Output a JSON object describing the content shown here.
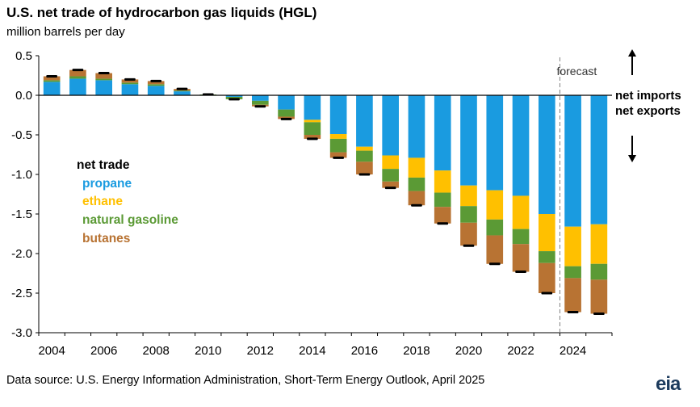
{
  "title": "U.S. net trade of hydrocarbon gas liquids (HGL)",
  "subtitle": "million  barrels per day",
  "source": "Data source: U.S. Energy Information Administration,  Short-Term Energy Outlook, April 2025",
  "logo": "eia",
  "forecast_label": "forecast",
  "net_imports_label": "net imports",
  "net_exports_label": "net exports",
  "legend": {
    "title": "net trade",
    "items": [
      {
        "label": "propane",
        "color": "#1a9be0"
      },
      {
        "label": "ethane",
        "color": "#ffc000"
      },
      {
        "label": "natural gasoline",
        "color": "#5b9a35"
      },
      {
        "label": "butanes",
        "color": "#b87333"
      }
    ]
  },
  "colors": {
    "propane": "#1a9be0",
    "ethane": "#ffc000",
    "natural_gasoline": "#5b9a35",
    "butanes": "#b87333",
    "total_marker": "#000000",
    "forecast_line": "#808080"
  },
  "chart_data": {
    "type": "bar",
    "stacked": true,
    "x": [
      2004,
      2005,
      2006,
      2007,
      2008,
      2009,
      2010,
      2011,
      2012,
      2013,
      2014,
      2015,
      2016,
      2017,
      2018,
      2019,
      2020,
      2021,
      2022,
      2023,
      2024,
      2025
    ],
    "series": [
      {
        "name": "propane",
        "values": [
          0.17,
          0.21,
          0.19,
          0.14,
          0.12,
          0.05,
          0.0,
          -0.02,
          -0.07,
          -0.18,
          -0.31,
          -0.49,
          -0.65,
          -0.76,
          -0.79,
          -0.95,
          -1.14,
          -1.2,
          -1.27,
          -1.5,
          -1.66,
          -1.63
        ]
      },
      {
        "name": "ethane",
        "values": [
          0.0,
          0.0,
          0.0,
          0.0,
          0.0,
          0.0,
          0.0,
          0.0,
          0.0,
          0.0,
          -0.03,
          -0.06,
          -0.05,
          -0.17,
          -0.25,
          -0.28,
          -0.26,
          -0.37,
          -0.42,
          -0.47,
          -0.5,
          -0.5
        ]
      },
      {
        "name": "natural gasoline",
        "values": [
          0.02,
          0.03,
          0.02,
          0.02,
          0.02,
          0.01,
          0.01,
          -0.03,
          -0.05,
          -0.09,
          -0.16,
          -0.17,
          -0.14,
          -0.16,
          -0.17,
          -0.18,
          -0.21,
          -0.2,
          -0.19,
          -0.15,
          -0.15,
          -0.2
        ]
      },
      {
        "name": "butanes",
        "values": [
          0.05,
          0.08,
          0.07,
          0.04,
          0.04,
          0.02,
          0.0,
          0.0,
          -0.02,
          -0.03,
          -0.05,
          -0.07,
          -0.16,
          -0.08,
          -0.18,
          -0.21,
          -0.29,
          -0.36,
          -0.35,
          -0.38,
          -0.43,
          -0.43
        ]
      }
    ],
    "totals": [
      0.24,
      0.32,
      0.28,
      0.2,
      0.18,
      0.08,
      0.01,
      -0.05,
      -0.14,
      -0.3,
      -0.55,
      -0.79,
      -1.0,
      -1.17,
      -1.39,
      -1.62,
      -1.9,
      -2.13,
      -2.23,
      -2.5,
      -2.74,
      -2.76
    ],
    "forecast_start": 2024,
    "xlabel": "",
    "ylabel": "million  barrels per day",
    "ylim": [
      -3.0,
      0.5
    ],
    "y_ticks": [
      "0.5",
      "0.0",
      "-0.5",
      "-1.0",
      "-1.5",
      "-2.0",
      "-2.5",
      "-3.0"
    ],
    "x_ticks": [
      "2004",
      "2006",
      "2008",
      "2010",
      "2012",
      "2014",
      "2016",
      "2018",
      "2020",
      "2022",
      "2024"
    ],
    "grid": false,
    "legend_position": "left"
  }
}
